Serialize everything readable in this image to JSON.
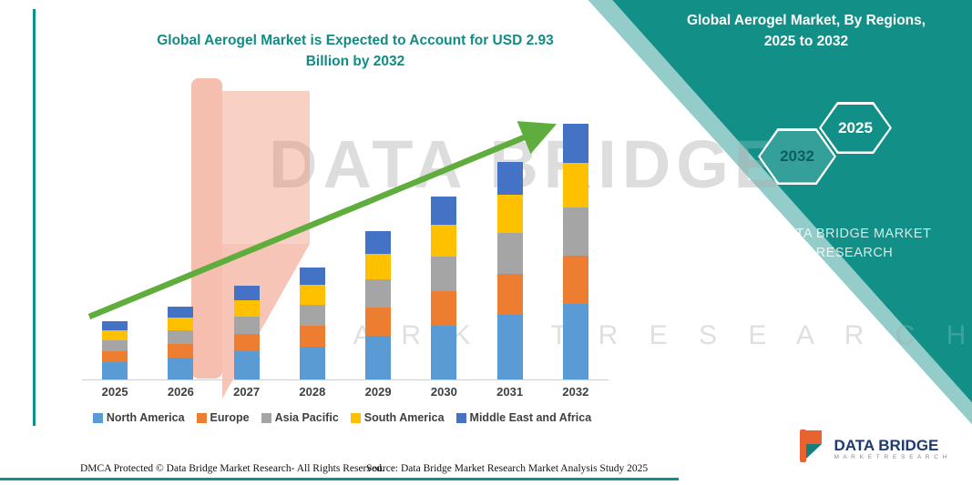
{
  "page": {
    "title_line1": "Global Aerogel Market is Expected to Account for USD 2.93",
    "title_line2": "Billion by 2032"
  },
  "side_panel": {
    "panel_color": "#128F87",
    "heading_line1": "Global Aerogel Market, By Regions,",
    "heading_line2": "2025 to 2032",
    "hexagons": [
      {
        "label": "2032"
      },
      {
        "label": "2025"
      }
    ],
    "brand_line1": "DATA BRIDGE MARKET",
    "brand_line2": "RESEARCH"
  },
  "watermark": {
    "line1": "DATA BRIDGE",
    "line2": "M A R K E T   R E S E A R C H",
    "logo_color": "#ED8465"
  },
  "chart_data": {
    "type": "bar",
    "stacked": true,
    "categories": [
      "2025",
      "2026",
      "2027",
      "2028",
      "2029",
      "2030",
      "2031",
      "2032"
    ],
    "series": [
      {
        "name": "North America",
        "color": "#5B9BD5",
        "values": [
          0.2,
          0.25,
          0.32,
          0.38,
          0.5,
          0.62,
          0.74,
          0.87
        ]
      },
      {
        "name": "Europe",
        "color": "#ED7D31",
        "values": [
          0.13,
          0.16,
          0.2,
          0.24,
          0.32,
          0.4,
          0.47,
          0.55
        ]
      },
      {
        "name": "Asia Pacific",
        "color": "#A5A5A5",
        "values": [
          0.13,
          0.16,
          0.2,
          0.24,
          0.32,
          0.4,
          0.47,
          0.55
        ]
      },
      {
        "name": "South America",
        "color": "#FFC000",
        "values": [
          0.12,
          0.15,
          0.19,
          0.23,
          0.29,
          0.37,
          0.44,
          0.51
        ]
      },
      {
        "name": "Middle East and Africa",
        "color": "#4472C4",
        "values": [
          0.1,
          0.13,
          0.17,
          0.2,
          0.26,
          0.32,
          0.38,
          0.45
        ]
      }
    ],
    "totals": [
      0.68,
      0.85,
      1.08,
      1.29,
      1.69,
      2.11,
      2.5,
      2.93
    ],
    "title": "Global Aerogel Market is Expected to Account for USD 2.93 Billion by 2032",
    "xlabel": "",
    "ylabel": "",
    "ylim": [
      0,
      3.0
    ],
    "grid": false,
    "legend_position": "bottom",
    "trend_arrow": true,
    "trend_arrow_color": "#5FAD3C"
  },
  "footer": {
    "left": "DMCA Protected © Data Bridge Market Research-  All Rights Reserved.",
    "source": "Source: Data Bridge Market Research  Market Analysis Study 2025"
  },
  "logo": {
    "name": "DATA BRIDGE",
    "tagline": "M A R K E T   R E S E A R C H"
  }
}
